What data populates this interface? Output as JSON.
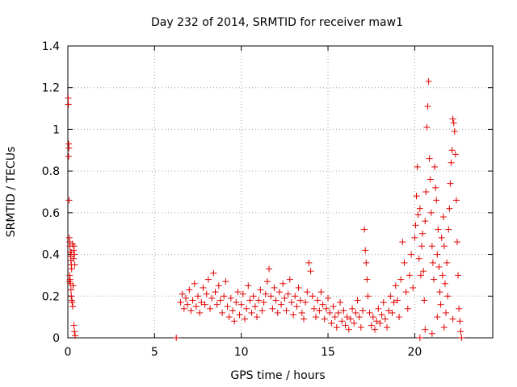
{
  "chart_data": {
    "type": "scatter",
    "title": "Day 232 of 2014, SRMTID for receiver maw1",
    "xlabel": "GPS time / hours",
    "ylabel": "SRMTID / TECUs",
    "xlim": [
      0,
      24.5
    ],
    "ylim": [
      0,
      1.4
    ],
    "grid": true,
    "marker": "+",
    "marker_color": "#e00000",
    "xticks": [
      {
        "value": 0,
        "label": "0"
      },
      {
        "value": 5,
        "label": "5"
      },
      {
        "value": 10,
        "label": "10"
      },
      {
        "value": 15,
        "label": "15"
      },
      {
        "value": 20,
        "label": "20"
      }
    ],
    "yticks": [
      {
        "value": 0,
        "label": "0"
      },
      {
        "value": 0.2,
        "label": "0.2"
      },
      {
        "value": 0.4,
        "label": "0.4"
      },
      {
        "value": 0.6,
        "label": "0.6"
      },
      {
        "value": 0.8,
        "label": "0.8"
      },
      {
        "value": 1.0,
        "label": "1"
      },
      {
        "value": 1.2,
        "label": "1.2"
      },
      {
        "value": 1.4,
        "label": "1.4"
      }
    ],
    "series": [
      {
        "name": "SRMTID",
        "points": [
          [
            0.02,
            1.15
          ],
          [
            0.03,
            1.12
          ],
          [
            0.05,
            0.93
          ],
          [
            0.06,
            0.91
          ],
          [
            0.04,
            0.87
          ],
          [
            0.07,
            0.66
          ],
          [
            0.08,
            0.48
          ],
          [
            0.1,
            0.46
          ],
          [
            0.12,
            0.44
          ],
          [
            0.14,
            0.41
          ],
          [
            0.16,
            0.39
          ],
          [
            0.18,
            0.37
          ],
          [
            0.2,
            0.35
          ],
          [
            0.22,
            0.33
          ],
          [
            0.1,
            0.3
          ],
          [
            0.13,
            0.28
          ],
          [
            0.15,
            0.26
          ],
          [
            0.18,
            0.23
          ],
          [
            0.2,
            0.2
          ],
          [
            0.23,
            0.18
          ],
          [
            0.25,
            0.17
          ],
          [
            0.28,
            0.15
          ],
          [
            0.3,
            0.25
          ],
          [
            0.32,
            0.38
          ],
          [
            0.34,
            0.42
          ],
          [
            0.36,
            0.44
          ],
          [
            0.38,
            0.4
          ],
          [
            0.4,
            0.35
          ],
          [
            0.35,
            0.06
          ],
          [
            0.38,
            0.03
          ],
          [
            0.42,
            0.01
          ],
          [
            0.27,
            0.45
          ],
          [
            0.19,
            0.41
          ],
          [
            0.09,
            0.27
          ],
          [
            6.25,
            0.0
          ],
          [
            20.3,
            0.0
          ],
          [
            6.5,
            0.17
          ],
          [
            6.6,
            0.21
          ],
          [
            6.7,
            0.14
          ],
          [
            6.8,
            0.19
          ],
          [
            6.9,
            0.16
          ],
          [
            7.0,
            0.23
          ],
          [
            7.1,
            0.13
          ],
          [
            7.2,
            0.18
          ],
          [
            7.3,
            0.26
          ],
          [
            7.4,
            0.15
          ],
          [
            7.5,
            0.2
          ],
          [
            7.6,
            0.12
          ],
          [
            7.7,
            0.17
          ],
          [
            7.8,
            0.24
          ],
          [
            7.9,
            0.16
          ],
          [
            8.0,
            0.21
          ],
          [
            8.1,
            0.28
          ],
          [
            8.2,
            0.14
          ],
          [
            8.3,
            0.19
          ],
          [
            8.4,
            0.31
          ],
          [
            8.5,
            0.22
          ],
          [
            8.6,
            0.16
          ],
          [
            8.7,
            0.25
          ],
          [
            8.8,
            0.18
          ],
          [
            8.9,
            0.12
          ],
          [
            9.0,
            0.2
          ],
          [
            9.1,
            0.27
          ],
          [
            9.2,
            0.15
          ],
          [
            9.3,
            0.1
          ],
          [
            9.4,
            0.19
          ],
          [
            9.5,
            0.13
          ],
          [
            9.6,
            0.08
          ],
          [
            9.7,
            0.17
          ],
          [
            9.8,
            0.22
          ],
          [
            9.9,
            0.11
          ],
          [
            10.0,
            0.16
          ],
          [
            10.1,
            0.21
          ],
          [
            10.2,
            0.09
          ],
          [
            10.3,
            0.14
          ],
          [
            10.4,
            0.25
          ],
          [
            10.5,
            0.18
          ],
          [
            10.6,
            0.12
          ],
          [
            10.7,
            0.2
          ],
          [
            10.8,
            0.15
          ],
          [
            10.9,
            0.1
          ],
          [
            11.0,
            0.18
          ],
          [
            11.1,
            0.23
          ],
          [
            11.2,
            0.13
          ],
          [
            11.3,
            0.17
          ],
          [
            11.4,
            0.21
          ],
          [
            11.5,
            0.27
          ],
          [
            11.6,
            0.33
          ],
          [
            11.7,
            0.2
          ],
          [
            11.8,
            0.14
          ],
          [
            11.9,
            0.24
          ],
          [
            12.0,
            0.18
          ],
          [
            12.1,
            0.12
          ],
          [
            12.2,
            0.22
          ],
          [
            12.3,
            0.16
          ],
          [
            12.4,
            0.26
          ],
          [
            12.5,
            0.19
          ],
          [
            12.6,
            0.13
          ],
          [
            12.7,
            0.21
          ],
          [
            12.8,
            0.28
          ],
          [
            12.9,
            0.17
          ],
          [
            13.0,
            0.11
          ],
          [
            13.1,
            0.2
          ],
          [
            13.2,
            0.15
          ],
          [
            13.3,
            0.24
          ],
          [
            13.4,
            0.18
          ],
          [
            13.5,
            0.12
          ],
          [
            13.6,
            0.09
          ],
          [
            13.7,
            0.17
          ],
          [
            13.8,
            0.22
          ],
          [
            13.9,
            0.36
          ],
          [
            14.0,
            0.32
          ],
          [
            14.1,
            0.2
          ],
          [
            14.2,
            0.14
          ],
          [
            14.3,
            0.1
          ],
          [
            14.4,
            0.18
          ],
          [
            14.5,
            0.13
          ],
          [
            14.6,
            0.22
          ],
          [
            14.7,
            0.16
          ],
          [
            14.8,
            0.09
          ],
          [
            14.9,
            0.14
          ],
          [
            15.0,
            0.19
          ],
          [
            15.1,
            0.12
          ],
          [
            15.2,
            0.07
          ],
          [
            15.3,
            0.15
          ],
          [
            15.4,
            0.1
          ],
          [
            15.5,
            0.05
          ],
          [
            15.6,
            0.12
          ],
          [
            15.7,
            0.17
          ],
          [
            15.8,
            0.08
          ],
          [
            15.9,
            0.13
          ],
          [
            16.0,
            0.06
          ],
          [
            16.1,
            0.1
          ],
          [
            16.2,
            0.04
          ],
          [
            16.3,
            0.09
          ],
          [
            16.4,
            0.14
          ],
          [
            16.5,
            0.07
          ],
          [
            16.6,
            0.12
          ],
          [
            16.7,
            0.18
          ],
          [
            16.8,
            0.1
          ],
          [
            16.9,
            0.05
          ],
          [
            17.0,
            0.13
          ],
          [
            17.1,
            0.52
          ],
          [
            17.15,
            0.42
          ],
          [
            17.2,
            0.36
          ],
          [
            17.25,
            0.28
          ],
          [
            17.3,
            0.2
          ],
          [
            17.4,
            0.12
          ],
          [
            17.5,
            0.06
          ],
          [
            17.6,
            0.1
          ],
          [
            17.7,
            0.04
          ],
          [
            17.8,
            0.08
          ],
          [
            17.9,
            0.14
          ],
          [
            18.0,
            0.07
          ],
          [
            18.1,
            0.11
          ],
          [
            18.2,
            0.17
          ],
          [
            18.3,
            0.09
          ],
          [
            18.4,
            0.05
          ],
          [
            18.5,
            0.13
          ],
          [
            18.6,
            0.2
          ],
          [
            18.7,
            0.12
          ],
          [
            18.8,
            0.17
          ],
          [
            18.9,
            0.25
          ],
          [
            19.0,
            0.18
          ],
          [
            19.1,
            0.1
          ],
          [
            19.2,
            0.28
          ],
          [
            19.3,
            0.46
          ],
          [
            19.4,
            0.36
          ],
          [
            19.5,
            0.22
          ],
          [
            19.6,
            0.14
          ],
          [
            19.7,
            0.3
          ],
          [
            19.8,
            0.4
          ],
          [
            19.9,
            0.24
          ],
          [
            20.0,
            0.48
          ],
          [
            20.05,
            0.54
          ],
          [
            20.1,
            0.68
          ],
          [
            20.15,
            0.82
          ],
          [
            20.2,
            0.59
          ],
          [
            20.25,
            0.38
          ],
          [
            20.3,
            0.62
          ],
          [
            20.35,
            0.3
          ],
          [
            20.4,
            0.44
          ],
          [
            20.45,
            0.5
          ],
          [
            20.5,
            0.32
          ],
          [
            20.55,
            0.18
          ],
          [
            20.6,
            0.56
          ],
          [
            20.65,
            0.7
          ],
          [
            20.7,
            1.01
          ],
          [
            20.75,
            1.11
          ],
          [
            20.8,
            1.23
          ],
          [
            20.85,
            0.86
          ],
          [
            20.9,
            0.76
          ],
          [
            20.95,
            0.6
          ],
          [
            21.0,
            0.44
          ],
          [
            21.05,
            0.36
          ],
          [
            21.1,
            0.28
          ],
          [
            21.15,
            0.82
          ],
          [
            21.2,
            0.72
          ],
          [
            21.25,
            0.66
          ],
          [
            21.3,
            0.4
          ],
          [
            21.35,
            0.52
          ],
          [
            21.4,
            0.34
          ],
          [
            21.45,
            0.22
          ],
          [
            21.5,
            0.16
          ],
          [
            21.55,
            0.48
          ],
          [
            21.6,
            0.3
          ],
          [
            21.65,
            0.58
          ],
          [
            21.7,
            0.44
          ],
          [
            21.75,
            0.26
          ],
          [
            21.8,
            0.12
          ],
          [
            21.85,
            0.36
          ],
          [
            21.9,
            0.2
          ],
          [
            21.95,
            0.52
          ],
          [
            22.0,
            0.62
          ],
          [
            22.05,
            0.74
          ],
          [
            22.1,
            0.84
          ],
          [
            22.15,
            0.9
          ],
          [
            22.2,
            1.05
          ],
          [
            22.25,
            1.03
          ],
          [
            22.3,
            0.99
          ],
          [
            22.35,
            0.88
          ],
          [
            22.4,
            0.66
          ],
          [
            22.45,
            0.46
          ],
          [
            22.5,
            0.3
          ],
          [
            22.55,
            0.14
          ],
          [
            22.6,
            0.08
          ],
          [
            22.65,
            0.03
          ],
          [
            21.0,
            0.02
          ],
          [
            21.7,
            0.05
          ],
          [
            22.2,
            0.09
          ],
          [
            20.6,
            0.04
          ],
          [
            21.3,
            0.1
          ],
          [
            22.7,
            0.0
          ]
        ]
      }
    ]
  }
}
